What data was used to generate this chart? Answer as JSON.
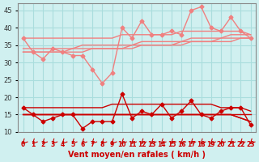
{
  "title": "",
  "xlabel": "Vent moyen/en rafales ( km/h )",
  "x": [
    0,
    1,
    2,
    3,
    4,
    5,
    6,
    7,
    8,
    9,
    10,
    11,
    12,
    13,
    14,
    15,
    16,
    17,
    18,
    19,
    20,
    21,
    22,
    23
  ],
  "background_color": "#d0f0f0",
  "grid_color": "#aadddd",
  "line_upper_trend1": [
    37,
    37,
    37,
    37,
    37,
    37,
    37,
    37,
    37,
    37,
    38,
    38,
    38,
    38,
    38,
    38,
    39,
    39,
    39,
    39,
    39,
    39,
    39,
    38
  ],
  "line_upper_trend2": [
    34,
    34,
    34,
    34,
    34,
    34,
    35,
    35,
    35,
    35,
    35,
    35,
    36,
    36,
    36,
    36,
    36,
    37,
    37,
    37,
    37,
    38,
    38,
    38
  ],
  "line_upper_trend3": [
    33,
    33,
    33,
    33,
    33,
    34,
    34,
    34,
    34,
    34,
    34,
    35,
    35,
    35,
    35,
    35,
    36,
    36,
    36,
    36,
    37,
    37,
    37,
    37
  ],
  "line_upper_trend4": [
    33,
    33,
    33,
    33,
    33,
    33,
    33,
    34,
    34,
    34,
    34,
    34,
    35,
    35,
    35,
    35,
    35,
    36,
    36,
    36,
    36,
    36,
    37,
    37
  ],
  "line_upper_data": [
    37,
    33,
    31,
    34,
    33,
    32,
    32,
    28,
    24,
    27,
    40,
    37,
    42,
    38,
    38,
    39,
    38,
    45,
    46,
    40,
    39,
    43,
    39,
    37
  ],
  "line_lower_trend1": [
    17,
    17,
    17,
    17,
    17,
    17,
    17,
    17,
    17,
    18,
    18,
    18,
    18,
    18,
    18,
    18,
    18,
    18,
    18,
    18,
    17,
    17,
    17,
    16
  ],
  "line_lower_trend2": [
    15,
    15,
    15,
    15,
    15,
    15,
    15,
    15,
    15,
    15,
    15,
    15,
    15,
    15,
    15,
    15,
    15,
    15,
    15,
    15,
    15,
    15,
    15,
    15
  ],
  "line_lower_trend3": [
    15,
    15,
    15,
    15,
    15,
    15,
    15,
    15,
    15,
    15,
    15,
    15,
    15,
    15,
    15,
    15,
    15,
    15,
    15,
    15,
    15,
    15,
    14,
    13
  ],
  "line_lower_trend4": [
    15,
    15,
    15,
    15,
    15,
    15,
    15,
    15,
    15,
    15,
    15,
    15,
    15,
    15,
    15,
    15,
    15,
    15,
    15,
    15,
    15,
    15,
    14,
    13
  ],
  "line_lower_data": [
    17,
    15,
    13,
    14,
    15,
    15,
    11,
    13,
    13,
    13,
    21,
    14,
    16,
    15,
    18,
    14,
    16,
    19,
    15,
    14,
    16,
    17,
    17,
    12
  ],
  "color_light": "#f08080",
  "color_dark": "#cc0000",
  "ylim": [
    10,
    47
  ],
  "yticks": [
    10,
    15,
    20,
    25,
    30,
    35,
    40,
    45
  ],
  "xticks": [
    0,
    1,
    2,
    3,
    4,
    5,
    6,
    7,
    8,
    9,
    10,
    11,
    12,
    13,
    14,
    15,
    16,
    17,
    18,
    19,
    20,
    21,
    22,
    23
  ]
}
